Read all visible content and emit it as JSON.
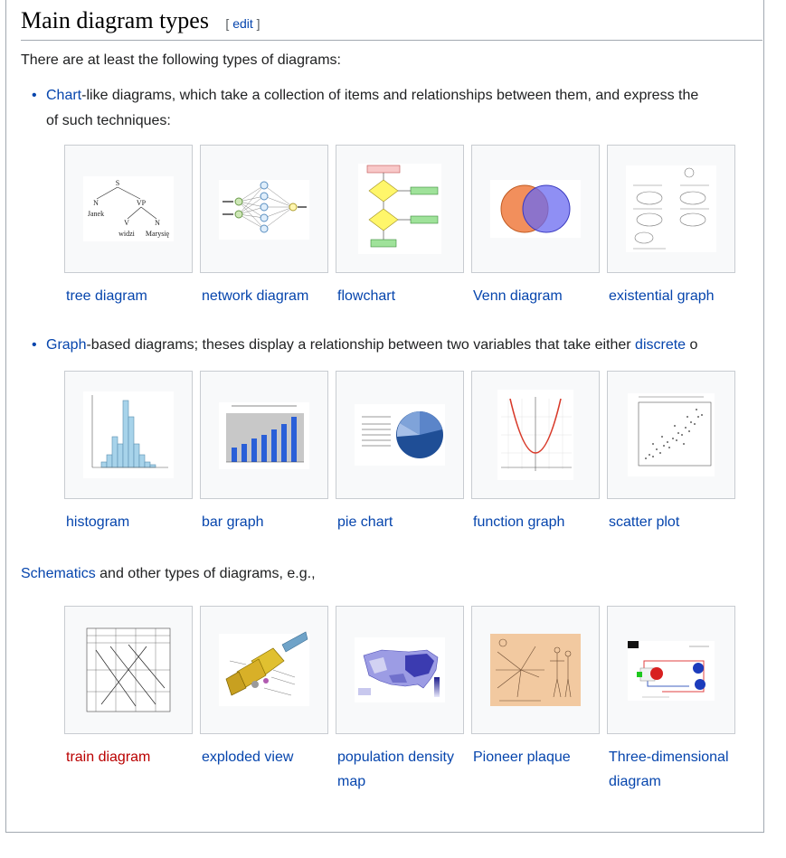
{
  "heading": {
    "title": "Main diagram types",
    "edit_open": "[",
    "edit_label": "edit",
    "edit_close": "]"
  },
  "intro": "There are at least the following types of diagrams:",
  "chart_bullet": {
    "link": "Chart",
    "text": "-like diagrams, which take a collection of items and relationships between them, and express the",
    "line2": "of such techniques:"
  },
  "gallery1": [
    {
      "caption": "tree diagram",
      "icon": "tree-diagram-thumbnail"
    },
    {
      "caption": "network diagram",
      "icon": "network-diagram-thumbnail"
    },
    {
      "caption": "flowchart",
      "icon": "flowchart-thumbnail"
    },
    {
      "caption": "Venn diagram",
      "icon": "venn-diagram-thumbnail"
    },
    {
      "caption": "existential graph",
      "icon": "existential-graph-thumbnail"
    }
  ],
  "graph_bullet": {
    "link": "Graph",
    "text": "-based diagrams; theses display a relationship between two variables that take either",
    "link2": "discrete",
    "text2": " o"
  },
  "gallery2": [
    {
      "caption": "histogram",
      "icon": "histogram-thumbnail"
    },
    {
      "caption": "bar graph",
      "icon": "bar-graph-thumbnail"
    },
    {
      "caption": "pie chart",
      "icon": "pie-chart-thumbnail"
    },
    {
      "caption": "function graph",
      "icon": "function-graph-thumbnail"
    },
    {
      "caption": "scatter plot",
      "icon": "scatter-plot-thumbnail"
    }
  ],
  "schematics": {
    "link": "Schematics",
    "text": " and other types of diagrams, e.g.,"
  },
  "gallery3": [
    {
      "caption": "train diagram",
      "icon": "train-diagram-thumbnail",
      "link_color": "#ba0000"
    },
    {
      "caption": "exploded view",
      "icon": "exploded-view-thumbnail"
    },
    {
      "caption": "population density map",
      "icon": "population-density-map-thumbnail"
    },
    {
      "caption": "Pioneer plaque",
      "icon": "pioneer-plaque-thumbnail"
    },
    {
      "caption": "Three-dimensional diagram",
      "icon": "three-dimensional-diagram-thumbnail"
    }
  ],
  "tree_labels": {
    "s": "S",
    "n": "N",
    "vp": "VP",
    "janek": "Janek",
    "v": "V",
    "n2": "N",
    "widzi": "widzi",
    "marysie": "Marysię"
  },
  "colors": {
    "link": "#0645ad",
    "redlink": "#ba0000",
    "border": "#a2a9b1",
    "thumb_bg": "#f8f9fa"
  }
}
